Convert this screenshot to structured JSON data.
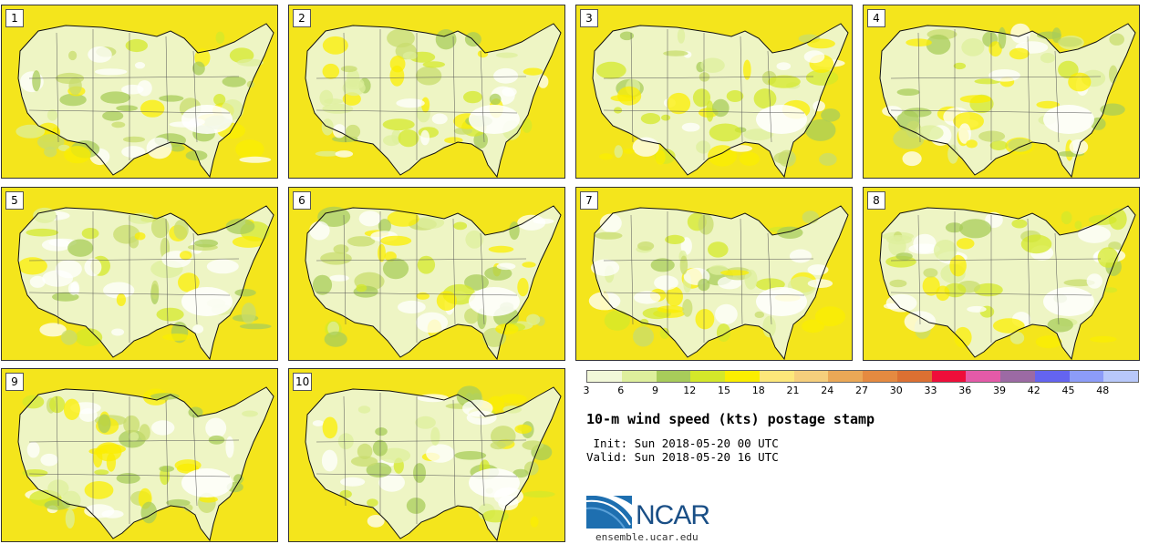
{
  "panels": [
    {
      "label": "1"
    },
    {
      "label": "2"
    },
    {
      "label": "3"
    },
    {
      "label": "4"
    },
    {
      "label": "5"
    },
    {
      "label": "6"
    },
    {
      "label": "7"
    },
    {
      "label": "8"
    },
    {
      "label": "9"
    },
    {
      "label": "10"
    }
  ],
  "legend": {
    "colors": [
      "#f2f8d8",
      "#deef9c",
      "#a8cc5a",
      "#d4e82a",
      "#fbee00",
      "#fde87a",
      "#f6cf7c",
      "#eba856",
      "#e58a40",
      "#dc7032",
      "#ee0e3a",
      "#e45aa8",
      "#9c6aa4",
      "#6464f0",
      "#8c9cf8",
      "#b8c8fa"
    ],
    "ticks": [
      "3",
      "6",
      "9",
      "12",
      "15",
      "18",
      "21",
      "24",
      "27",
      "30",
      "33",
      "36",
      "39",
      "42",
      "45",
      "48"
    ]
  },
  "title": "10-m wind speed (kts) postage stamp",
  "init": " Init: Sun 2018-05-20 00 UTC",
  "valid": "Valid: Sun 2018-05-20 16 UTC",
  "logo": {
    "text": "NCAR",
    "url": "ensemble.ucar.edu"
  }
}
